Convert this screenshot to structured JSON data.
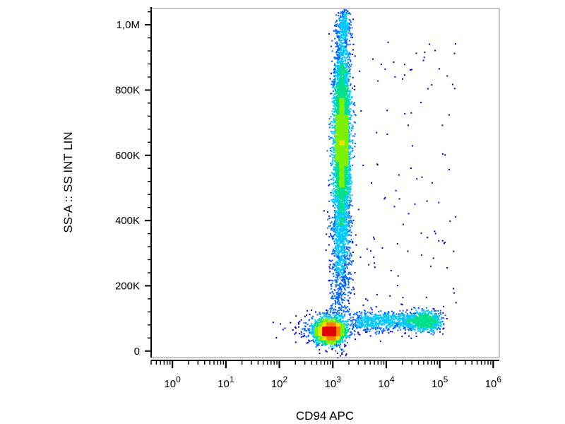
{
  "chart_data": {
    "type": "scatter",
    "subtype": "flow-cytometry-density-dot-plot",
    "title": "",
    "xlabel": "CD94 APC",
    "ylabel": "SS-A :: SS INT LIN",
    "x_scale": "log",
    "y_scale": "linear",
    "xlim": [
      0.4,
      1300000
    ],
    "ylim": [
      -20000,
      1050000
    ],
    "x_ticks": [
      {
        "value": 1,
        "base": "10",
        "exp": "0"
      },
      {
        "value": 10,
        "base": "10",
        "exp": "1"
      },
      {
        "value": 100,
        "base": "10",
        "exp": "2"
      },
      {
        "value": 1000,
        "base": "10",
        "exp": "3"
      },
      {
        "value": 10000,
        "base": "10",
        "exp": "4"
      },
      {
        "value": 100000,
        "base": "10",
        "exp": "5"
      },
      {
        "value": 1000000,
        "base": "10",
        "exp": "6"
      }
    ],
    "y_ticks": [
      {
        "value": 0,
        "label": "0"
      },
      {
        "value": 200000,
        "label": "200K"
      },
      {
        "value": 400000,
        "label": "400K"
      },
      {
        "value": 600000,
        "label": "600K"
      },
      {
        "value": 800000,
        "label": "800K"
      },
      {
        "value": 1000000,
        "label": "1,0M"
      }
    ],
    "grid": false,
    "legend": "none",
    "colormap": [
      "#0000c8",
      "#0066ff",
      "#00c8ff",
      "#00e08a",
      "#7cf000",
      "#f0e000",
      "#ff8000",
      "#e00000"
    ],
    "populations": [
      {
        "name": "cd94-negative-low-ss",
        "x_center": 900,
        "y_center": 62000,
        "density": "highest"
      },
      {
        "name": "high-ss-granulocytes",
        "x_center": 1500,
        "y_center": 640000,
        "y_range": [
          150000,
          1050000
        ],
        "density": "high"
      },
      {
        "name": "cd94-positive-low-ss",
        "x_range": [
          3000,
          120000
        ],
        "y_center": 90000,
        "density": "medium"
      }
    ]
  }
}
